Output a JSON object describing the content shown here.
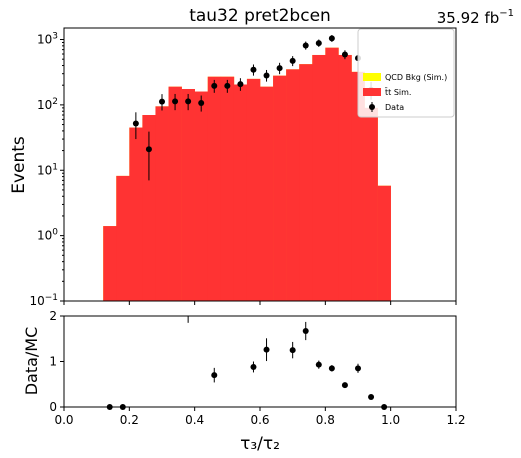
{
  "chart_data": [
    {
      "type": "bar",
      "panel": "main",
      "title": "tau32  pret2bcen",
      "lumi": {
        "value": "35.92 fb",
        "exponent": "−1"
      },
      "ylabel": "Events",
      "yscale": "log",
      "ylim": [
        0.1,
        1500
      ],
      "xlim": [
        0.0,
        1.2
      ],
      "yticks": [
        {
          "value": 0.1,
          "base": "10",
          "exp": "−1"
        },
        {
          "value": 1,
          "base": "10",
          "exp": "0"
        },
        {
          "value": 10,
          "base": "10",
          "exp": "1"
        },
        {
          "value": 100,
          "base": "10",
          "exp": "2"
        },
        {
          "value": 1000,
          "base": "10",
          "exp": "3"
        }
      ],
      "bin_edges": [
        0.12,
        0.16,
        0.2,
        0.24,
        0.28,
        0.32,
        0.36,
        0.4,
        0.44,
        0.48,
        0.52,
        0.56,
        0.6,
        0.64,
        0.68,
        0.72,
        0.76,
        0.8,
        0.84,
        0.88,
        0.92,
        0.96,
        1.0
      ],
      "series": [
        {
          "name": "QCD Bkg (Sim.)",
          "color": "#ffff00",
          "stack_order": 2,
          "values": [
            0,
            0,
            0,
            0,
            0,
            0,
            0,
            0,
            0,
            0,
            0,
            0,
            0,
            0,
            0,
            0,
            0,
            0,
            0,
            0,
            0,
            0
          ]
        },
        {
          "name": "t̄t Sim.",
          "color": "#ff3333",
          "stack_order": 1,
          "values": [
            1.4,
            8.2,
            45,
            70,
            95,
            190,
            175,
            160,
            270,
            270,
            205,
            250,
            190,
            280,
            350,
            420,
            580,
            750,
            580,
            320,
            90,
            5.8
          ]
        }
      ],
      "stack_totals": [
        1.4,
        8.2,
        45,
        70,
        95,
        190,
        175,
        160,
        270,
        270,
        205,
        250,
        190,
        280,
        350,
        420,
        580,
        750,
        580,
        320,
        90,
        5.8
      ],
      "data": {
        "name": "Data",
        "x": [
          0.14,
          0.18,
          0.22,
          0.26,
          0.3,
          0.34,
          0.38,
          0.42,
          0.46,
          0.5,
          0.54,
          0.58,
          0.62,
          0.66,
          0.7,
          0.74,
          0.78,
          0.82,
          0.86,
          0.9,
          0.94,
          0.98
        ],
        "y": [
          null,
          null,
          52,
          21,
          112,
          113,
          113,
          107,
          195,
          195,
          208,
          345,
          282,
          365,
          472,
          810,
          880,
          1040,
          590,
          520,
          170,
          null
        ],
        "yerr_low": [
          null,
          null,
          22,
          14,
          30,
          30,
          30,
          28,
          42,
          42,
          44,
          65,
          55,
          70,
          80,
          110,
          110,
          120,
          90,
          90,
          50,
          null
        ],
        "yerr_high": [
          null,
          null,
          25,
          18,
          34,
          34,
          34,
          32,
          46,
          46,
          48,
          70,
          60,
          75,
          85,
          120,
          120,
          130,
          95,
          95,
          55,
          null
        ]
      },
      "legend": {
        "placement": "right",
        "entries": [
          "QCD Bkg (Sim.)",
          "t̄t Sim.",
          "Data"
        ]
      }
    },
    {
      "type": "scatter",
      "panel": "ratio",
      "ylabel": "Data/MC",
      "xlabel": "τ₃/τ₂",
      "xlim": [
        0.0,
        1.2
      ],
      "ylim": [
        0,
        2
      ],
      "yticks": [
        0,
        1,
        2
      ],
      "xticks": [
        "0.0",
        "0.2",
        "0.4",
        "0.6",
        "0.8",
        "1.0",
        "1.2"
      ],
      "points": [
        {
          "x": 0.14,
          "y": 0.0,
          "err": 0.0
        },
        {
          "x": 0.18,
          "y": 0.0,
          "err": 0.0
        },
        {
          "x": 0.38,
          "y": 2.05,
          "err": 0.2
        },
        {
          "x": 0.46,
          "y": 0.7,
          "err": 0.16
        },
        {
          "x": 0.58,
          "y": 0.88,
          "err": 0.12
        },
        {
          "x": 0.62,
          "y": 1.26,
          "err": 0.25
        },
        {
          "x": 0.7,
          "y": 1.25,
          "err": 0.18
        },
        {
          "x": 0.74,
          "y": 1.67,
          "err": 0.2
        },
        {
          "x": 0.78,
          "y": 0.93,
          "err": 0.09
        },
        {
          "x": 0.82,
          "y": 0.85,
          "err": 0.07
        },
        {
          "x": 0.86,
          "y": 0.48,
          "err": 0.05
        },
        {
          "x": 0.9,
          "y": 0.85,
          "err": 0.1
        },
        {
          "x": 0.94,
          "y": 0.22,
          "err": 0.04
        },
        {
          "x": 0.98,
          "y": 0.0,
          "err": 0.0
        }
      ]
    }
  ]
}
